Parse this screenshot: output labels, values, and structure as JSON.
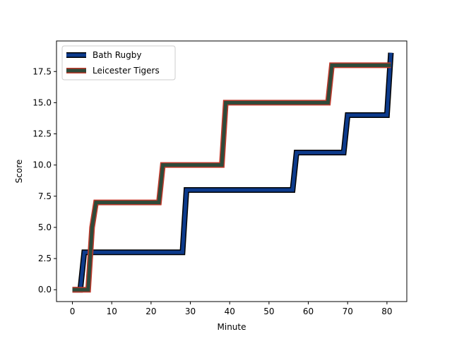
{
  "chart_data": {
    "type": "line",
    "title": "",
    "xlabel": "Minute",
    "ylabel": "Score",
    "xlim": [
      -4.05,
      85.05
    ],
    "ylim": [
      -0.95,
      19.95
    ],
    "xticks": [
      0,
      10,
      20,
      30,
      40,
      50,
      60,
      70,
      80
    ],
    "yticks": [
      0.0,
      2.5,
      5.0,
      7.5,
      10.0,
      12.5,
      15.0,
      17.5
    ],
    "xtick_labels": [
      "0",
      "10",
      "20",
      "30",
      "40",
      "50",
      "60",
      "70",
      "80"
    ],
    "ytick_labels": [
      "0.0",
      "2.5",
      "5.0",
      "7.5",
      "10.0",
      "12.5",
      "15.0",
      "17.5"
    ],
    "grid": false,
    "legend_position": "upper-left",
    "series": [
      {
        "name": "Bath Rugby",
        "color": "#0d3b8c",
        "edge_color": "#000000",
        "x": [
          0,
          2,
          3,
          28,
          29,
          56,
          57,
          69,
          70,
          80,
          81
        ],
        "y": [
          0,
          0,
          3,
          3,
          8,
          8,
          11,
          11,
          14,
          14,
          19
        ]
      },
      {
        "name": "Leicester Tigers",
        "color": "#2e4a3a",
        "edge_color": "#c0392b",
        "x": [
          0,
          4,
          5,
          6,
          22,
          23,
          38,
          39,
          65,
          66,
          81
        ],
        "y": [
          0,
          0,
          5,
          7,
          7,
          10,
          10,
          15,
          15,
          18,
          18
        ]
      }
    ]
  }
}
